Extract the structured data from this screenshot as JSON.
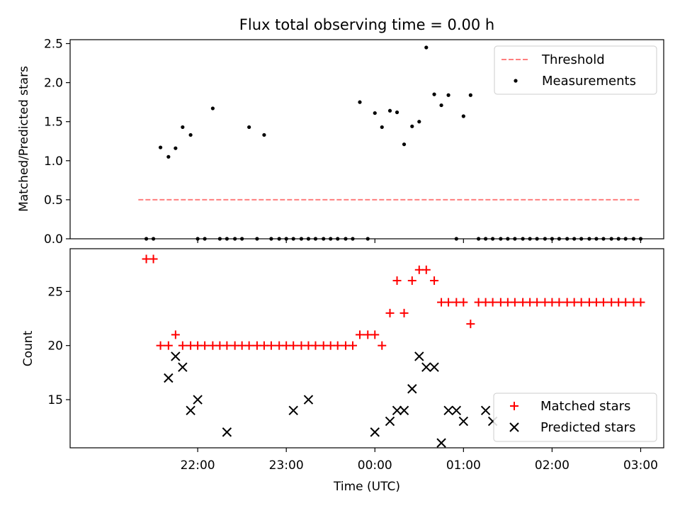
{
  "chart_data": [
    {
      "type": "scatter",
      "title": "Flux total observing time = 0.00 h",
      "xlabel": "",
      "ylabel": "Matched/Predicted stars",
      "x_unit": "hours since 21:00 UTC",
      "xlim": [
        20.56,
        27.26
      ],
      "ylim": [
        0,
        2.55
      ],
      "yticks": [
        "0.0",
        "0.5",
        "1.0",
        "1.5",
        "2.0",
        "2.5"
      ],
      "legend": {
        "placement": "top-right",
        "entries": [
          "Threshold",
          "Measurements"
        ]
      },
      "series": [
        {
          "name": "Threshold",
          "style": "dashed-line",
          "color": "#ff7f7f",
          "x": [
            21.33,
            27.0
          ],
          "y": [
            0.5,
            0.5
          ]
        },
        {
          "name": "Measurements",
          "style": "dot",
          "color": "#000000",
          "x": [
            21.42,
            21.5,
            21.58,
            21.67,
            21.75,
            21.83,
            21.92,
            22.0,
            22.08,
            22.17,
            22.25,
            22.33,
            22.42,
            22.5,
            22.58,
            22.67,
            22.75,
            22.83,
            22.92,
            23.0,
            23.08,
            23.17,
            23.25,
            23.33,
            23.42,
            23.5,
            23.58,
            23.67,
            23.75,
            23.83,
            23.92,
            24.0,
            24.08,
            24.17,
            24.25,
            24.33,
            24.42,
            24.5,
            24.58,
            24.67,
            24.75,
            24.83,
            24.92,
            25.0,
            25.08,
            25.17,
            25.25,
            25.33,
            25.42,
            25.5,
            25.58,
            25.67,
            25.75,
            25.83,
            25.92,
            26.0,
            26.08,
            26.17,
            26.25,
            26.33,
            26.42,
            26.5,
            26.58,
            26.67,
            26.75,
            26.83,
            26.92,
            27.0
          ],
          "y": [
            0,
            0,
            1.17,
            1.05,
            1.16,
            1.43,
            1.33,
            0,
            0,
            1.67,
            0,
            0,
            0,
            0,
            1.43,
            0,
            1.33,
            0,
            0,
            0,
            0,
            0,
            0,
            0,
            0,
            0,
            0,
            0,
            0,
            1.75,
            0,
            1.61,
            1.43,
            1.64,
            1.62,
            1.21,
            1.44,
            1.5,
            2.45,
            1.85,
            1.71,
            1.84,
            0,
            1.57,
            1.84,
            0,
            0,
            0,
            0,
            0,
            0,
            0,
            0,
            0,
            0,
            0,
            0,
            0,
            0,
            0,
            0,
            0,
            0,
            0,
            0,
            0,
            0,
            0
          ]
        }
      ]
    },
    {
      "type": "scatter",
      "title": "",
      "xlabel": "Time (UTC)",
      "ylabel": "Count",
      "x_unit": "hours since 21:00 UTC",
      "xlim": [
        20.56,
        27.26
      ],
      "ylim": [
        10.55,
        28.95
      ],
      "yticks": [
        "15",
        "20",
        "25"
      ],
      "xticks": [
        {
          "value": 22,
          "label": "22:00"
        },
        {
          "value": 23,
          "label": "23:00"
        },
        {
          "value": 24,
          "label": "00:00"
        },
        {
          "value": 25,
          "label": "01:00"
        },
        {
          "value": 26,
          "label": "02:00"
        },
        {
          "value": 27,
          "label": "03:00"
        }
      ],
      "legend": {
        "placement": "bottom-right",
        "entries": [
          "Matched stars",
          "Predicted stars"
        ]
      },
      "series": [
        {
          "name": "Matched stars",
          "marker": "plus",
          "color": "#ff0000",
          "x": [
            21.42,
            21.5,
            21.58,
            21.67,
            21.75,
            21.83,
            21.92,
            22.0,
            22.08,
            22.17,
            22.25,
            22.33,
            22.42,
            22.5,
            22.58,
            22.67,
            22.75,
            22.83,
            22.92,
            23.0,
            23.08,
            23.17,
            23.25,
            23.33,
            23.42,
            23.5,
            23.58,
            23.67,
            23.75,
            23.83,
            23.92,
            24.0,
            24.08,
            24.17,
            24.25,
            24.33,
            24.42,
            24.5,
            24.58,
            24.67,
            24.75,
            24.83,
            24.92,
            25.0,
            25.08,
            25.17,
            25.25,
            25.33,
            25.42,
            25.5,
            25.58,
            25.67,
            25.75,
            25.83,
            25.92,
            26.0,
            26.08,
            26.17,
            26.25,
            26.33,
            26.42,
            26.5,
            26.58,
            26.67,
            26.75,
            26.83,
            26.92,
            27.0
          ],
          "y": [
            28,
            28,
            20,
            20,
            21,
            20,
            20,
            20,
            20,
            20,
            20,
            20,
            20,
            20,
            20,
            20,
            20,
            20,
            20,
            20,
            20,
            20,
            20,
            20,
            20,
            20,
            20,
            20,
            20,
            21,
            21,
            21,
            20,
            23,
            26,
            23,
            26,
            27,
            27,
            26,
            24,
            24,
            24,
            24,
            22,
            24,
            24,
            24,
            24,
            24,
            24,
            24,
            24,
            24,
            24,
            24,
            24,
            24,
            24,
            24,
            24,
            24,
            24,
            24,
            24,
            24,
            24,
            24
          ]
        },
        {
          "name": "Predicted stars",
          "marker": "x",
          "color": "#000000",
          "x": [
            21.67,
            21.75,
            21.83,
            21.92,
            22.0,
            22.33,
            23.08,
            23.25,
            24.0,
            24.17,
            24.25,
            24.33,
            24.42,
            24.5,
            24.58,
            24.67,
            24.75,
            24.83,
            24.92,
            25.0,
            25.25,
            25.33
          ],
          "y": [
            17,
            19,
            18,
            14,
            15,
            12,
            14,
            15,
            12,
            13,
            14,
            14,
            16,
            19,
            18,
            18,
            11,
            14,
            14,
            13,
            14,
            13
          ]
        }
      ]
    }
  ]
}
